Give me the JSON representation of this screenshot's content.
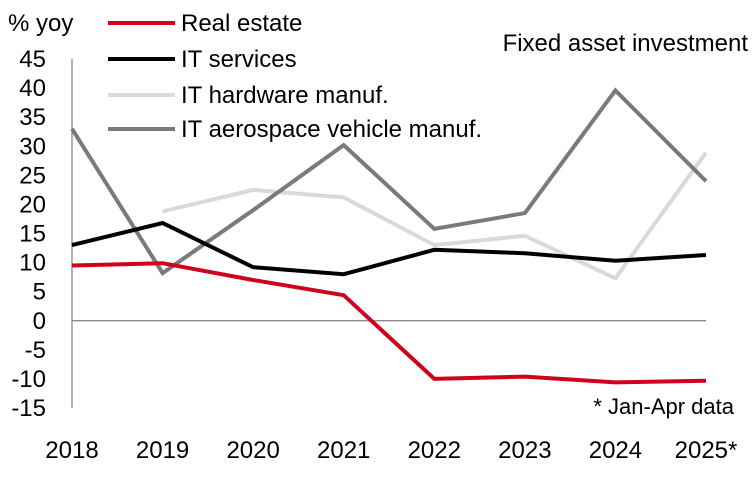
{
  "chart_data": {
    "type": "line",
    "title": "Fixed asset investment",
    "ylabel": "% yoy",
    "xlabel": "",
    "categories": [
      "2018",
      "2019",
      "2020",
      "2021",
      "2022",
      "2023",
      "2024",
      "2025*"
    ],
    "ylim": [
      -15,
      45
    ],
    "yticks": [
      45,
      40,
      35,
      30,
      25,
      20,
      15,
      10,
      5,
      0,
      -5,
      -10,
      -15
    ],
    "grid": false,
    "legend_position": "top-left",
    "annotation": "* Jan-Apr data",
    "series": [
      {
        "name": "Real estate",
        "color": "#d0021b",
        "values": [
          9.5,
          9.9,
          7.0,
          4.4,
          -10.0,
          -9.6,
          -10.6,
          -10.3
        ]
      },
      {
        "name": "IT services",
        "color": "#000000",
        "values": [
          13.0,
          16.8,
          9.2,
          8.0,
          12.2,
          11.6,
          10.3,
          11.3
        ]
      },
      {
        "name": "IT hardware manuf.",
        "color": "#d9d9d9",
        "values": [
          null,
          18.8,
          22.5,
          21.2,
          13.0,
          14.6,
          7.3,
          28.9
        ]
      },
      {
        "name": "IT aerospace vehicle manuf.",
        "color": "#7a7a7a",
        "values": [
          33.0,
          8.2,
          19.0,
          30.2,
          15.8,
          18.5,
          39.6,
          24.0
        ]
      }
    ]
  }
}
